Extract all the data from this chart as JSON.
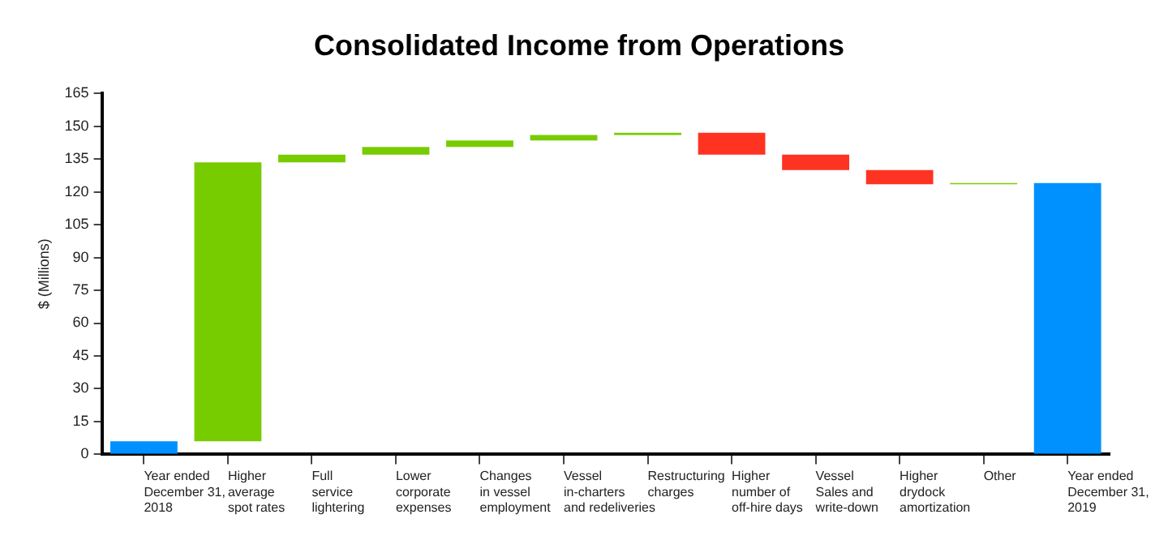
{
  "chart_data": {
    "type": "bar",
    "title": "Consolidated Income from Operations",
    "ylabel": "$ (Millions)",
    "categories": [
      "Year ended\nDecember 31,\n2018",
      "Higher\naverage\nspot rates",
      "Full\nservice\nlightering",
      "Lower\ncorporate\nexpenses",
      "Changes\nin vessel\nemployment",
      "Vessel\nin-charters\nand redeliveries",
      "Restructuring\ncharges",
      "Higher\nnumber of\noff-hire days",
      "Vessel\nSales and\nwrite-down",
      "Higher\ndrydock\namortization",
      "Other",
      "Year ended\nDecember 31,\n2019"
    ],
    "values": [
      6,
      127.5,
      3.5,
      3.5,
      3,
      2.5,
      1,
      -10,
      -7,
      -6.5,
      0.5,
      124
    ],
    "base": [
      0,
      6,
      133.5,
      137,
      140.5,
      143.5,
      146,
      147,
      137,
      130,
      123.5,
      0
    ],
    "colors": [
      "#0091ff",
      "#77cc00",
      "#77cc00",
      "#77cc00",
      "#77cc00",
      "#77cc00",
      "#77cc00",
      "#ff3322",
      "#ff3322",
      "#ff3322",
      "#77cc00",
      "#0091ff"
    ],
    "ylim": [
      0,
      165
    ],
    "yticks": [
      0,
      15,
      30,
      45,
      60,
      75,
      90,
      105,
      120,
      135,
      150,
      165
    ],
    "grid": false,
    "legend": false
  }
}
